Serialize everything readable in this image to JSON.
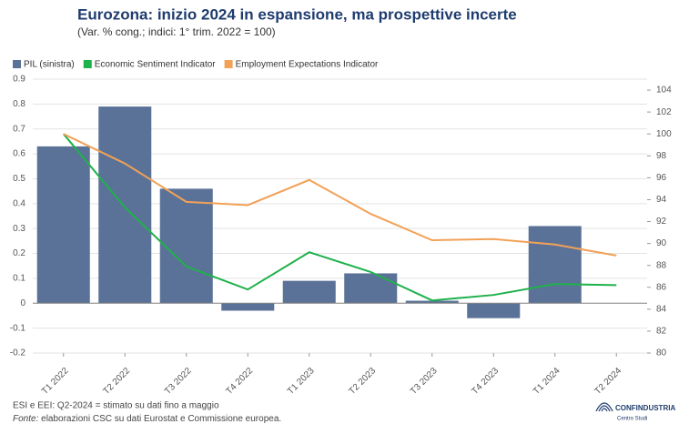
{
  "chart_data": {
    "type": "bar_line",
    "title": "Eurozona: inizio 2024 in espansione, ma prospettive incerte",
    "subtitle": "(Var. % cong.; indici: 1° trim. 2022 = 100)",
    "categories": [
      "T1 2022",
      "T2 2022",
      "T3 2022",
      "T4 2022",
      "T1 2023",
      "T2 2023",
      "T3 2023",
      "T4 2023",
      "T1 2024",
      "T2 2024"
    ],
    "series": [
      {
        "name": "PIL (sinistra)",
        "type": "bar",
        "color": "#5b7298",
        "values": [
          0.63,
          0.79,
          0.46,
          -0.03,
          0.09,
          0.12,
          0.01,
          -0.06,
          0.31,
          null
        ]
      },
      {
        "name": "Economic Sentiment Indicator",
        "type": "line",
        "axis": "y2",
        "color": "#1fb14b",
        "values": [
          100,
          93.3,
          87.9,
          85.8,
          89.2,
          87.4,
          84.8,
          85.3,
          86.3,
          86.2
        ]
      },
      {
        "name": "Employment Expectations Indicator",
        "type": "line",
        "axis": "y2",
        "color": "#f2a157",
        "values": [
          100,
          97.3,
          93.8,
          93.5,
          95.8,
          92.7,
          90.3,
          90.4,
          89.9,
          88.9
        ]
      }
    ],
    "ylim": [
      -0.2,
      0.9
    ],
    "yticks": [
      -0.2,
      -0.1,
      0,
      0.1,
      0.2,
      0.3,
      0.4,
      0.5,
      0.6,
      0.7,
      0.8,
      0.9
    ],
    "y2lim": [
      80,
      105
    ],
    "y2ticks": [
      80,
      82,
      84,
      86,
      88,
      90,
      92,
      94,
      96,
      98,
      100,
      102,
      104
    ],
    "grid": true,
    "legend": "top-left"
  },
  "notes": {
    "note": "ESI e EEI: Q2-2024 = stimato su dati fino a maggio",
    "source_label": "Fonte:",
    "source_text": " elaborazioni CSC su dati Eurostat e Commissione europea."
  },
  "logo": {
    "name": "CONFINDUSTRIA",
    "sub": "Centro Studi"
  }
}
